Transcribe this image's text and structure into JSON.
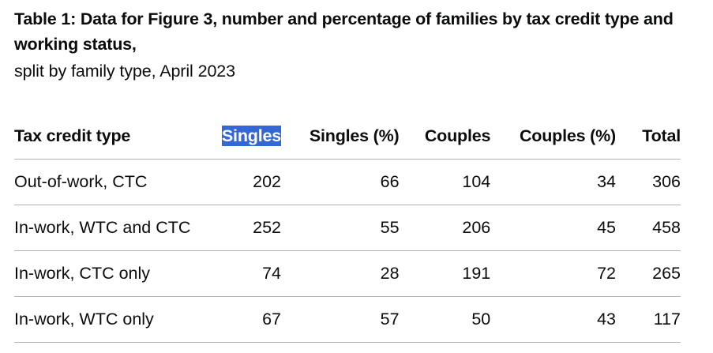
{
  "caption": {
    "title": "Table 1: Data for Figure 3, number and percentage of families by tax credit type and working status,",
    "subtitle": "split by family type, April 2023"
  },
  "table": {
    "headers": [
      "Tax credit type",
      "Singles",
      "Singles (%)",
      "Couples",
      "Couples (%)",
      "Total"
    ],
    "rows": [
      [
        "Out-of-work, CTC",
        "202",
        "66",
        "104",
        "34",
        "306"
      ],
      [
        "In-work, WTC and CTC",
        "252",
        "55",
        "206",
        "45",
        "458"
      ],
      [
        "In-work, CTC only",
        "74",
        "28",
        "191",
        "72",
        "265"
      ],
      [
        "In-work, WTC only",
        "67",
        "57",
        "50",
        "43",
        "117"
      ]
    ]
  },
  "selection": {
    "highlight_color": "#3367d6",
    "selected_text": "Singles"
  }
}
